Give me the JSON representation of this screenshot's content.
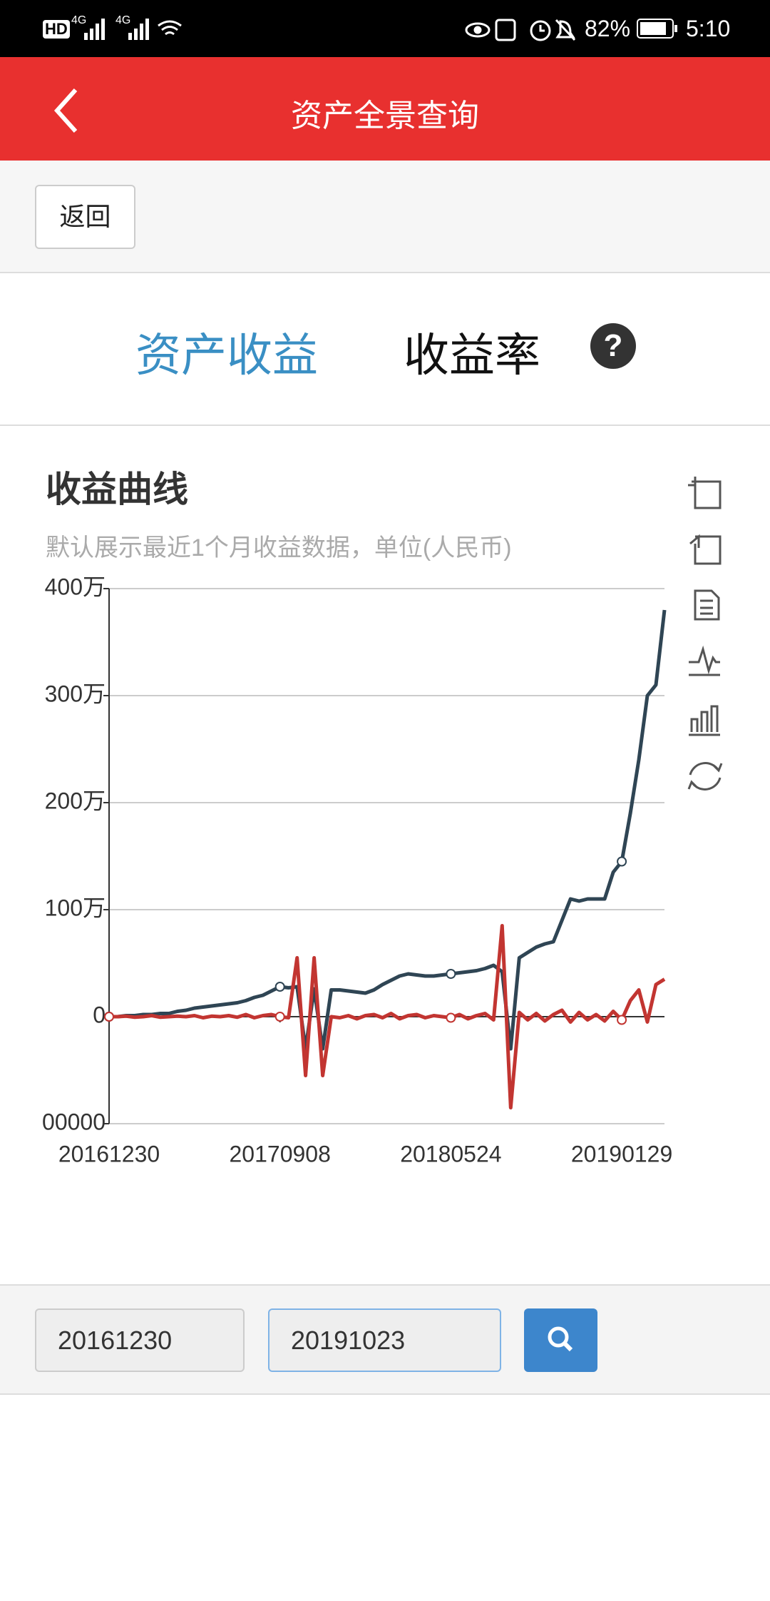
{
  "status_bar": {
    "network": [
      "HD",
      "4G",
      "4G"
    ],
    "battery": "82%",
    "time": "5:10"
  },
  "header": {
    "title": "资产全景查询"
  },
  "toolbar": {
    "back_button": "返回"
  },
  "tabs": {
    "items": [
      "资产收益",
      "收益率"
    ],
    "help": "?"
  },
  "chart_data": {
    "type": "line",
    "title": "收益曲线",
    "subtitle": "默认展示最近1个月收益数据，单位(人民币)",
    "categories": [
      "20161230",
      null,
      null,
      null,
      null,
      null,
      null,
      null,
      null,
      null,
      null,
      null,
      null,
      null,
      null,
      null,
      null,
      null,
      null,
      null,
      "20170908",
      null,
      null,
      null,
      null,
      null,
      null,
      null,
      null,
      null,
      null,
      null,
      null,
      null,
      null,
      null,
      null,
      null,
      null,
      null,
      "20180524",
      null,
      null,
      null,
      null,
      null,
      null,
      null,
      null,
      null,
      null,
      null,
      null,
      null,
      null,
      null,
      null,
      null,
      null,
      null,
      "20190129",
      null,
      null,
      null,
      null,
      null
    ],
    "series": [
      {
        "color": "#2f4554",
        "values": [
          0,
          0,
          10000,
          10000,
          20000,
          20000,
          30000,
          30000,
          50000,
          60000,
          80000,
          90000,
          100000,
          110000,
          120000,
          130000,
          150000,
          180000,
          200000,
          240000,
          280000,
          270000,
          280000,
          -300000,
          260000,
          -300000,
          250000,
          250000,
          240000,
          230000,
          220000,
          250000,
          300000,
          340000,
          380000,
          400000,
          390000,
          380000,
          380000,
          390000,
          400000,
          410000,
          420000,
          430000,
          450000,
          480000,
          420000,
          -300000,
          550000,
          600000,
          650000,
          680000,
          700000,
          900000,
          1100000,
          1080000,
          1100000,
          1100000,
          1100000,
          1350000,
          1450000,
          1900000,
          2400000,
          3000000,
          3100000,
          3800000
        ]
      },
      {
        "color": "#c23531",
        "values": [
          0,
          0,
          5000,
          -5000,
          0,
          10000,
          -5000,
          0,
          5000,
          0,
          10000,
          -10000,
          5000,
          0,
          10000,
          -5000,
          20000,
          -10000,
          10000,
          20000,
          0,
          -10000,
          550000,
          -550000,
          550000,
          -550000,
          0,
          -10000,
          10000,
          -20000,
          10000,
          20000,
          -10000,
          30000,
          -20000,
          10000,
          20000,
          -10000,
          10000,
          0,
          -10000,
          20000,
          -20000,
          10000,
          30000,
          -30000,
          850000,
          -850000,
          40000,
          -30000,
          30000,
          -40000,
          20000,
          60000,
          -50000,
          40000,
          -30000,
          20000,
          -40000,
          50000,
          -30000,
          150000,
          250000,
          -50000,
          300000,
          350000
        ]
      }
    ],
    "ylim": [
      -1000000,
      4000000
    ],
    "yticks": [
      {
        "value": -1000000,
        "label": "00000"
      },
      0,
      {
        "value": 1000000,
        "label": "100万"
      },
      {
        "value": 2000000,
        "label": "200万"
      },
      {
        "value": 3000000,
        "label": "300万"
      },
      {
        "value": 4000000,
        "label": "400万"
      }
    ],
    "grid": true
  },
  "date_range": {
    "start": "20161230",
    "end": "20191023"
  }
}
